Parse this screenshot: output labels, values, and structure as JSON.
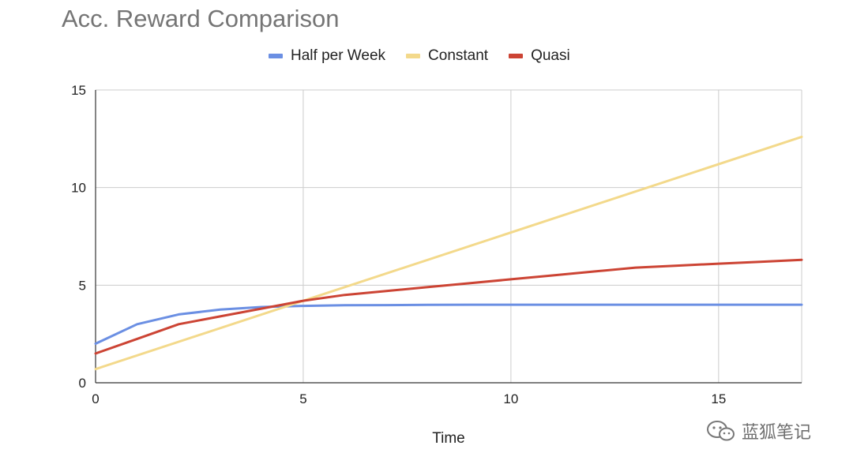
{
  "chart_data": {
    "type": "line",
    "title": "Acc. Reward Comparison",
    "xlabel": "Time",
    "ylabel": "",
    "xlim": [
      0,
      17
    ],
    "ylim": [
      0,
      15
    ],
    "x_ticks": [
      "0",
      "5",
      "10",
      "15"
    ],
    "y_ticks": [
      "0",
      "5",
      "10",
      "15"
    ],
    "grid": true,
    "legend_position": "top",
    "series": [
      {
        "name": "Half per Week",
        "color": "#6b8fe3",
        "x": [
          0,
          1,
          2,
          3,
          4,
          5,
          6,
          7,
          8,
          9,
          10,
          11,
          12,
          13,
          14,
          15,
          16,
          17
        ],
        "values": [
          2.0,
          3.0,
          3.5,
          3.75,
          3.88,
          3.94,
          3.97,
          3.98,
          3.99,
          4.0,
          4.0,
          4.0,
          4.0,
          4.0,
          4.0,
          4.0,
          4.0,
          4.0
        ]
      },
      {
        "name": "Constant",
        "color": "#f3d98b",
        "x": [
          0,
          17
        ],
        "values": [
          0.7,
          12.6
        ]
      },
      {
        "name": "Quasi",
        "color": "#cc4434",
        "x": [
          0,
          1,
          2,
          3,
          4,
          5,
          6,
          7,
          8,
          9,
          10,
          11,
          12,
          13,
          14,
          15,
          16,
          17
        ],
        "values": [
          1.5,
          2.25,
          3.0,
          3.4,
          3.8,
          4.2,
          4.5,
          4.7,
          4.9,
          5.1,
          5.3,
          5.5,
          5.7,
          5.9,
          6.0,
          6.1,
          6.2,
          6.3
        ]
      }
    ]
  },
  "watermark": {
    "text": "蓝狐笔记"
  }
}
